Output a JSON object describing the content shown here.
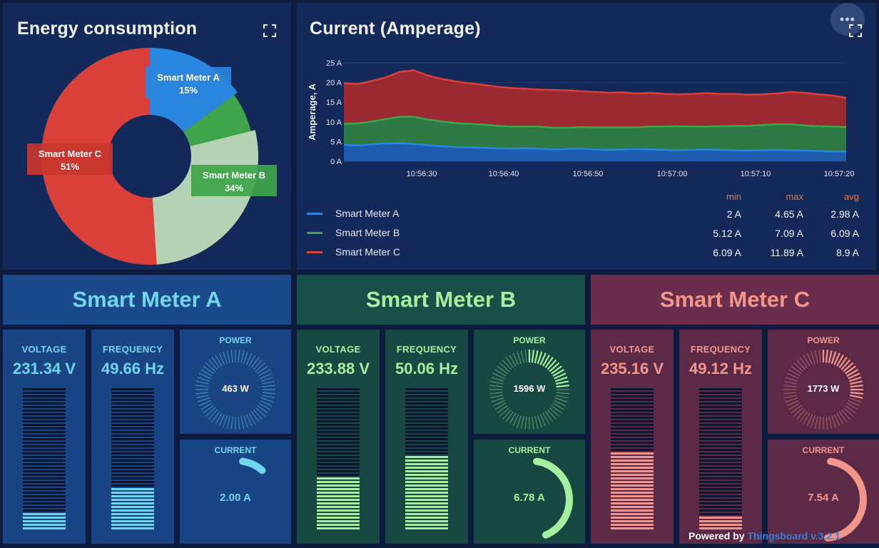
{
  "energy": {
    "title": "Energy consumption",
    "slices": [
      {
        "label": "Smart Meter A",
        "pct": "15%",
        "value": 15,
        "color": "#2a86de"
      },
      {
        "label": "Smart Meter B",
        "pct": "34%",
        "value": 34,
        "color": "#b6d2b4"
      },
      {
        "label": "Smart Meter C",
        "pct": "51%",
        "value": 51,
        "color": "#d9403a"
      }
    ]
  },
  "current": {
    "title": "Current (Amperage)",
    "menu_icon": "more-horizontal-icon",
    "chart_data": {
      "type": "area",
      "ylabel": "Amperage, A",
      "yticks": [
        "25 A",
        "20 A",
        "15 A",
        "10 A",
        "5 A",
        "0 A"
      ],
      "ylim": [
        0,
        25
      ],
      "xticks": [
        "10:56:30",
        "10:56:40",
        "10:56:50",
        "10:57:00",
        "10:57:10",
        "10:57:20"
      ],
      "series": [
        {
          "name": "Smart Meter A",
          "color": "#2a86de",
          "min": "2 A",
          "max": "4.65 A",
          "avg": "2.98 A",
          "values": [
            4.2,
            4.0,
            4.3,
            4.5,
            4.6,
            4.4,
            4.1,
            3.8,
            3.6,
            3.5,
            3.4,
            3.3,
            3.2,
            3.3,
            3.2,
            3.0,
            3.1,
            3.2,
            3.0,
            2.9,
            3.0,
            3.1,
            3.0,
            2.9,
            2.8,
            2.9,
            3.0,
            2.9,
            2.8,
            2.7,
            2.8,
            2.9,
            2.8,
            2.7,
            2.6,
            2.5,
            2.5
          ]
        },
        {
          "name": "Smart Meter B",
          "color": "#3fa44a",
          "min": "5.12 A",
          "max": "7.09 A",
          "avg": "6.09 A",
          "values": [
            5.3,
            5.6,
            5.8,
            6.2,
            6.7,
            6.9,
            6.5,
            6.3,
            6.1,
            6.0,
            5.9,
            5.7,
            5.6,
            5.5,
            5.6,
            5.5,
            5.4,
            5.5,
            5.6,
            5.7,
            5.6,
            5.5,
            5.8,
            5.9,
            6.1,
            5.9,
            5.8,
            6.0,
            6.2,
            6.3,
            6.4,
            6.5,
            6.6,
            6.4,
            6.3,
            6.3,
            6.2
          ]
        },
        {
          "name": "Smart Meter C",
          "color": "#d9403a",
          "min": "6.09 A",
          "max": "11.89 A",
          "avg": "8.9 A",
          "values": [
            10.3,
            10.0,
            10.3,
            10.6,
            11.4,
            11.8,
            11.2,
            10.8,
            10.6,
            10.3,
            10.1,
            9.9,
            9.8,
            9.6,
            9.4,
            9.6,
            9.5,
            9.1,
            9.0,
            8.8,
            8.9,
            8.6,
            8.6,
            8.3,
            8.1,
            8.3,
            8.5,
            8.2,
            8.1,
            7.9,
            7.8,
            7.8,
            8.2,
            8.3,
            8.1,
            7.9,
            7.4
          ]
        }
      ],
      "stats_headers": {
        "min": "min",
        "max": "max",
        "avg": "avg"
      }
    }
  },
  "meters": [
    {
      "name": "Smart Meter A",
      "accent": "#6fd6ee",
      "header_bg": "#1a4a8c",
      "card_bg": "#1a4585",
      "voltage_label": "VOLTAGE",
      "voltage": "231.34 V",
      "voltage_level": 0.12,
      "frequency_label": "FREQUENCY",
      "frequency": "49.66 Hz",
      "frequency_level": 0.3,
      "power_label": "POWER",
      "power": "463 W",
      "power_level": 0.0,
      "current_label": "CURRENT",
      "current": "2.00 A",
      "current_level": 0.12
    },
    {
      "name": "Smart Meter B",
      "accent": "#a6ef9e",
      "header_bg": "#175048",
      "card_bg": "#174842",
      "voltage_label": "VOLTAGE",
      "voltage": "233.88 V",
      "voltage_level": 0.36,
      "frequency_label": "FREQUENCY",
      "frequency": "50.06 Hz",
      "frequency_level": 0.52,
      "power_label": "POWER",
      "power": "1596 W",
      "power_level": 0.25,
      "current_label": "CURRENT",
      "current": "6.78 A",
      "current_level": 0.55
    },
    {
      "name": "Smart Meter C",
      "accent": "#f2958a",
      "header_bg": "#6a2d4b",
      "card_bg": "#5c2a46",
      "voltage_label": "VOLTAGE",
      "voltage": "235.16 V",
      "voltage_level": 0.53,
      "frequency_label": "FREQUENCY",
      "frequency": "49.12 Hz",
      "frequency_level": 0.08,
      "power_label": "POWER",
      "power": "1773 W",
      "power_level": 0.3,
      "current_label": "CURRENT",
      "current": "7.54 A",
      "current_level": 0.62
    }
  ],
  "footer": {
    "prefix": "Powered by",
    "brand": "Thingsboard v.3.2.1"
  }
}
